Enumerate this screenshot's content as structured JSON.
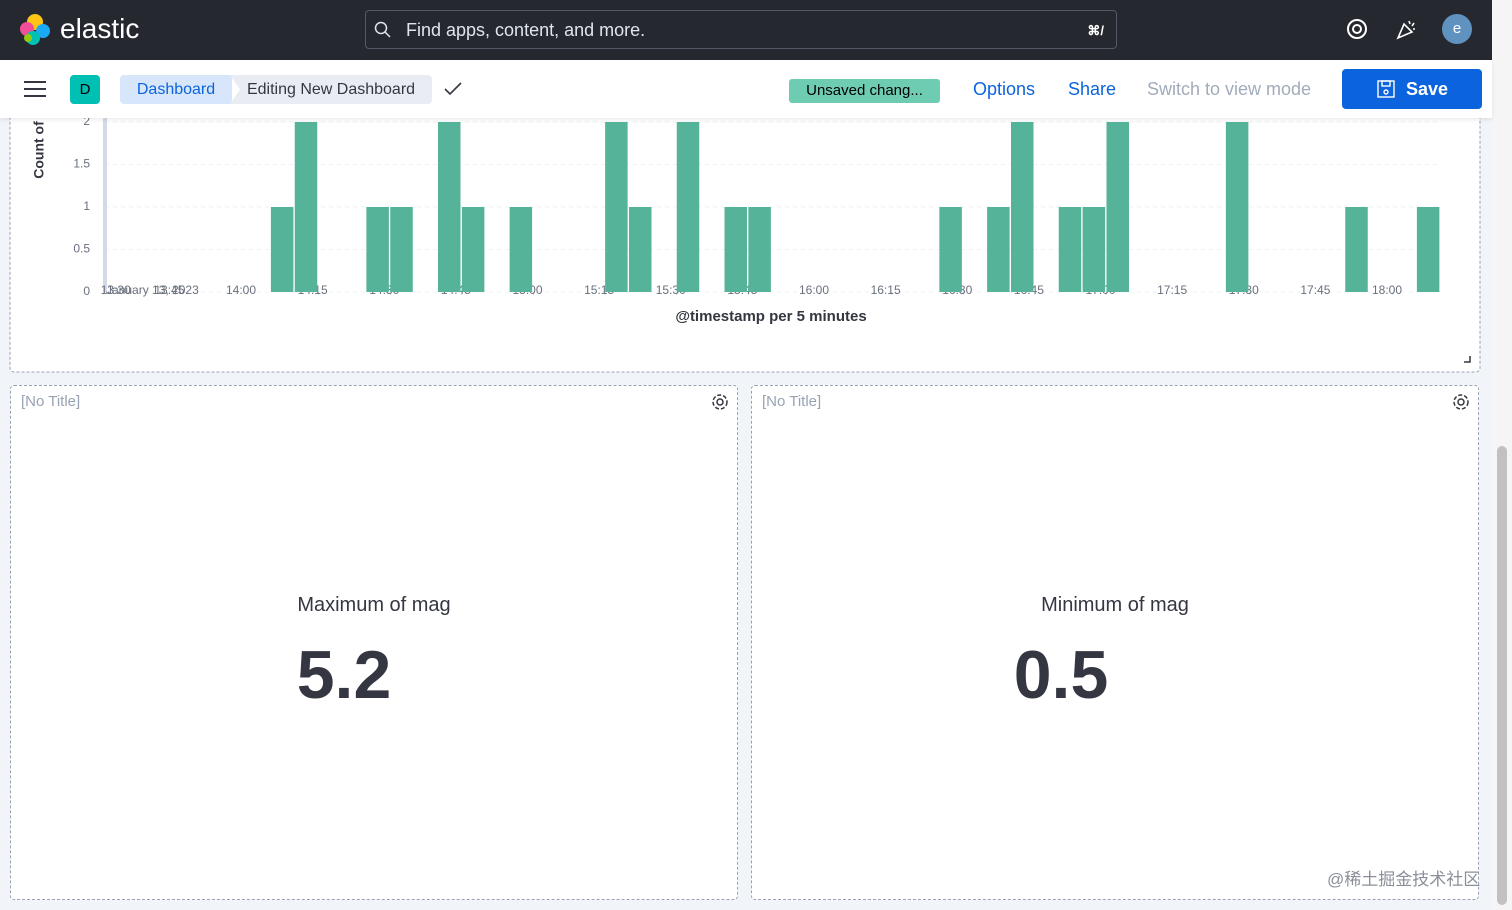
{
  "header": {
    "brand": "elastic",
    "search_placeholder": "Find apps, content, and more.",
    "shortcut": "⌘/",
    "avatar": "e"
  },
  "toolbar": {
    "space": "D",
    "breadcrumbs": [
      "Dashboard",
      "Editing New Dashboard"
    ],
    "status": "Unsaved chang...",
    "actions": [
      "Options",
      "Share",
      "Switch to view mode"
    ],
    "save": "Save"
  },
  "chart_data": {
    "type": "bar",
    "y_label": "Count of",
    "x_label": "@timestamp per 5 minutes",
    "date_label": "January 13, 2023",
    "color": "#54b399",
    "ylim": [
      0,
      2
    ],
    "yticks": [
      0,
      0.5,
      1,
      1.5,
      2
    ],
    "xticks": [
      "13:30",
      "13:45",
      "14:00",
      "14:15",
      "14:30",
      "14:45",
      "15:00",
      "15:15",
      "15:30",
      "15:45",
      "16:00",
      "16:15",
      "16:30",
      "16:45",
      "17:00",
      "17:15",
      "17:30",
      "17:45",
      "18:00"
    ],
    "x": [
      "14:05",
      "14:10",
      "14:25",
      "14:30",
      "14:40",
      "14:45",
      "14:55",
      "15:15",
      "15:20",
      "15:30",
      "15:40",
      "15:45",
      "16:25",
      "16:35",
      "16:40",
      "16:50",
      "16:55",
      "17:00",
      "17:25",
      "17:50",
      "18:05"
    ],
    "values": [
      1,
      2,
      1,
      1,
      2,
      1,
      1,
      2,
      1,
      2,
      1,
      1,
      1,
      1,
      2,
      1,
      1,
      2,
      2,
      1,
      1
    ],
    "grid": true
  },
  "panels": [
    {
      "title": "[No Title]",
      "metric_label": "Maximum of mag",
      "metric_value": "5.2"
    },
    {
      "title": "[No Title]",
      "metric_label": "Minimum of mag",
      "metric_value": "0.5"
    }
  ],
  "watermark": "@稀土掘金技术社区"
}
